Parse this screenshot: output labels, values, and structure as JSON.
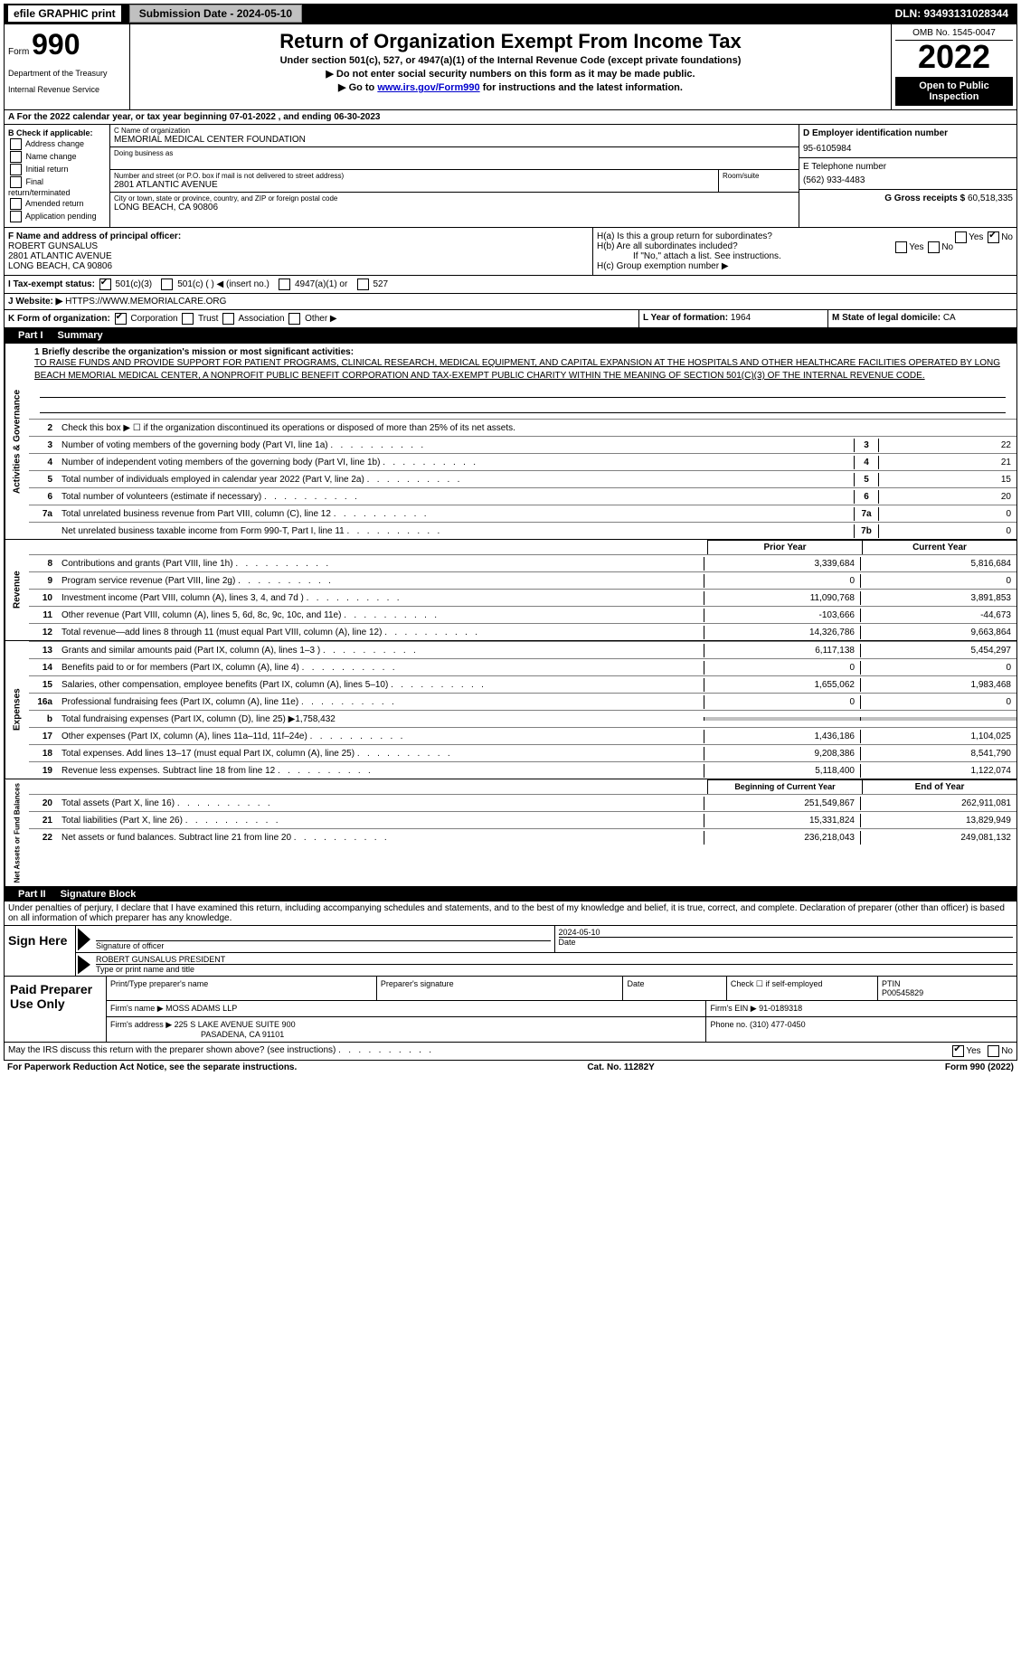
{
  "topbar": {
    "efile": "efile GRAPHIC print",
    "submission": "Submission Date - 2024-05-10",
    "dln": "DLN: 93493131028344"
  },
  "header": {
    "form_prefix": "Form",
    "form_num": "990",
    "dept": "Department of the Treasury",
    "irs": "Internal Revenue Service",
    "title": "Return of Organization Exempt From Income Tax",
    "subtitle": "Under section 501(c), 527, or 4947(a)(1) of the Internal Revenue Code (except private foundations)",
    "note1": "▶ Do not enter social security numbers on this form as it may be made public.",
    "note2_prefix": "▶ Go to ",
    "note2_link": "www.irs.gov/Form990",
    "note2_suffix": " for instructions and the latest information.",
    "omb": "OMB No. 1545-0047",
    "year": "2022",
    "open": "Open to Public Inspection"
  },
  "rowA": "A For the 2022 calendar year, or tax year beginning 07-01-2022    , and ending 06-30-2023",
  "boxB": {
    "label": "B Check if applicable:",
    "opts": [
      "Address change",
      "Name change",
      "Initial return",
      "Final return/terminated",
      "Amended return",
      "Application pending"
    ]
  },
  "boxC": {
    "label": "C Name of organization",
    "name": "MEMORIAL MEDICAL CENTER FOUNDATION",
    "dba_label": "Doing business as",
    "addr_label": "Number and street (or P.O. box if mail is not delivered to street address)",
    "room_label": "Room/suite",
    "addr": "2801 ATLANTIC AVENUE",
    "city_label": "City or town, state or province, country, and ZIP or foreign postal code",
    "city": "LONG BEACH, CA  90806"
  },
  "boxD": {
    "label": "D Employer identification number",
    "value": "95-6105984"
  },
  "boxE": {
    "label": "E Telephone number",
    "value": "(562) 933-4483"
  },
  "boxG": {
    "label": "G Gross receipts $",
    "value": "60,518,335"
  },
  "boxF": {
    "label": "F  Name and address of principal officer:",
    "name": "ROBERT GUNSALUS",
    "addr1": "2801 ATLANTIC AVENUE",
    "addr2": "LONG BEACH, CA  90806"
  },
  "boxH": {
    "ha": "H(a)  Is this a group return for subordinates?",
    "hb": "H(b)  Are all subordinates included?",
    "hb_note": "If \"No,\" attach a list. See instructions.",
    "hc": "H(c)  Group exemption number ▶"
  },
  "rowI": {
    "label": "I   Tax-exempt status:",
    "o1": "501(c)(3)",
    "o2": "501(c) (   ) ◀ (insert no.)",
    "o3": "4947(a)(1) or",
    "o4": "527"
  },
  "rowJ": {
    "label": "J   Website: ▶",
    "value": "HTTPS://WWW.MEMORIALCARE.ORG"
  },
  "rowK": {
    "label": "K Form of organization:",
    "o1": "Corporation",
    "o2": "Trust",
    "o3": "Association",
    "o4": "Other ▶"
  },
  "rowL": {
    "label": "L Year of formation:",
    "value": "1964"
  },
  "rowM": {
    "label": "M State of legal domicile:",
    "value": "CA"
  },
  "part1": {
    "title": "Part I",
    "heading": "Summary",
    "side1": "Activities & Governance",
    "side2": "Revenue",
    "side3": "Expenses",
    "side4": "Net Assets or Fund Balances",
    "l1_label": "1  Briefly describe the organization's mission or most significant activities:",
    "l1_text": "TO RAISE FUNDS AND PROVIDE SUPPORT FOR PATIENT PROGRAMS, CLINICAL RESEARCH, MEDICAL EQUIPMENT, AND CAPITAL EXPANSION AT THE HOSPITALS AND OTHER HEALTHCARE FACILITIES OPERATED BY LONG BEACH MEMORIAL MEDICAL CENTER, A NONPROFIT PUBLIC BENEFIT CORPORATION AND TAX-EXEMPT PUBLIC CHARITY WITHIN THE MEANING OF SECTION 501(C)(3) OF THE INTERNAL REVENUE CODE.",
    "l2": "Check this box ▶ ☐  if the organization discontinued its operations or disposed of more than 25% of its net assets.",
    "lines_small": [
      {
        "n": "3",
        "t": "Number of voting members of the governing body (Part VI, line 1a)",
        "box": "3",
        "v": "22"
      },
      {
        "n": "4",
        "t": "Number of independent voting members of the governing body (Part VI, line 1b)",
        "box": "4",
        "v": "21"
      },
      {
        "n": "5",
        "t": "Total number of individuals employed in calendar year 2022 (Part V, line 2a)",
        "box": "5",
        "v": "15"
      },
      {
        "n": "6",
        "t": "Total number of volunteers (estimate if necessary)",
        "box": "6",
        "v": "20"
      },
      {
        "n": "7a",
        "t": "Total unrelated business revenue from Part VIII, column (C), line 12",
        "box": "7a",
        "v": "0"
      },
      {
        "n": "",
        "t": "Net unrelated business taxable income from Form 990-T, Part I, line 11",
        "box": "7b",
        "v": "0"
      }
    ],
    "col_prior": "Prior Year",
    "col_current": "Current Year",
    "revenue": [
      {
        "n": "8",
        "t": "Contributions and grants (Part VIII, line 1h)",
        "p": "3,339,684",
        "c": "5,816,684"
      },
      {
        "n": "9",
        "t": "Program service revenue (Part VIII, line 2g)",
        "p": "0",
        "c": "0"
      },
      {
        "n": "10",
        "t": "Investment income (Part VIII, column (A), lines 3, 4, and 7d )",
        "p": "11,090,768",
        "c": "3,891,853"
      },
      {
        "n": "11",
        "t": "Other revenue (Part VIII, column (A), lines 5, 6d, 8c, 9c, 10c, and 11e)",
        "p": "-103,666",
        "c": "-44,673"
      },
      {
        "n": "12",
        "t": "Total revenue—add lines 8 through 11 (must equal Part VIII, column (A), line 12)",
        "p": "14,326,786",
        "c": "9,663,864"
      }
    ],
    "expenses": [
      {
        "n": "13",
        "t": "Grants and similar amounts paid (Part IX, column (A), lines 1–3 )",
        "p": "6,117,138",
        "c": "5,454,297"
      },
      {
        "n": "14",
        "t": "Benefits paid to or for members (Part IX, column (A), line 4)",
        "p": "0",
        "c": "0"
      },
      {
        "n": "15",
        "t": "Salaries, other compensation, employee benefits (Part IX, column (A), lines 5–10)",
        "p": "1,655,062",
        "c": "1,983,468"
      },
      {
        "n": "16a",
        "t": "Professional fundraising fees (Part IX, column (A), line 11e)",
        "p": "0",
        "c": "0"
      },
      {
        "n": "b",
        "t": "Total fundraising expenses (Part IX, column (D), line 25) ▶1,758,432",
        "p": "",
        "c": "",
        "shaded": true
      },
      {
        "n": "17",
        "t": "Other expenses (Part IX, column (A), lines 11a–11d, 11f–24e)",
        "p": "1,436,186",
        "c": "1,104,025"
      },
      {
        "n": "18",
        "t": "Total expenses. Add lines 13–17 (must equal Part IX, column (A), line 25)",
        "p": "9,208,386",
        "c": "8,541,790"
      },
      {
        "n": "19",
        "t": "Revenue less expenses. Subtract line 18 from line 12",
        "p": "5,118,400",
        "c": "1,122,074"
      }
    ],
    "col_begin": "Beginning of Current Year",
    "col_end": "End of Year",
    "netassets": [
      {
        "n": "20",
        "t": "Total assets (Part X, line 16)",
        "p": "251,549,867",
        "c": "262,911,081"
      },
      {
        "n": "21",
        "t": "Total liabilities (Part X, line 26)",
        "p": "15,331,824",
        "c": "13,829,949"
      },
      {
        "n": "22",
        "t": "Net assets or fund balances. Subtract line 21 from line 20",
        "p": "236,218,043",
        "c": "249,081,132"
      }
    ]
  },
  "part2": {
    "title": "Part II",
    "heading": "Signature Block",
    "declaration": "Under penalties of perjury, I declare that I have examined this return, including accompanying schedules and statements, and to the best of my knowledge and belief, it is true, correct, and complete. Declaration of preparer (other than officer) is based on all information of which preparer has any knowledge."
  },
  "sign": {
    "here": "Sign Here",
    "sig_label": "Signature of officer",
    "date": "2024-05-10",
    "date_label": "Date",
    "name": "ROBERT GUNSALUS  PRESIDENT",
    "name_label": "Type or print name and title"
  },
  "paid": {
    "label": "Paid Preparer Use Only",
    "h1": "Print/Type preparer's name",
    "h2": "Preparer's signature",
    "h3": "Date",
    "h4_a": "Check ☐ if self-employed",
    "h4_b": "PTIN",
    "ptin": "P00545829",
    "firm_label": "Firm's name    ▶",
    "firm": "MOSS ADAMS LLP",
    "ein_label": "Firm's EIN ▶",
    "ein": "91-0189318",
    "addr_label": "Firm's address ▶",
    "addr1": "225 S LAKE AVENUE SUITE 900",
    "addr2": "PASADENA, CA  91101",
    "phone_label": "Phone no.",
    "phone": "(310) 477-0450"
  },
  "footer": {
    "discuss": "May the IRS discuss this return with the preparer shown above? (see instructions)",
    "yes": "Yes",
    "no": "No",
    "paperwork": "For Paperwork Reduction Act Notice, see the separate instructions.",
    "cat": "Cat. No. 11282Y",
    "form": "Form 990 (2022)"
  }
}
